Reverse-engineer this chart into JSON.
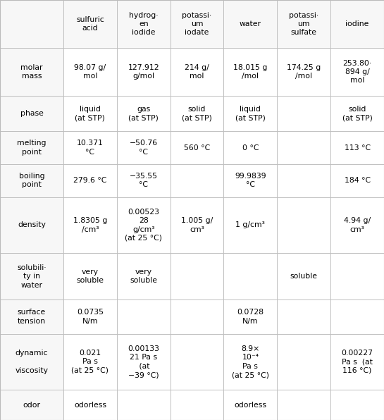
{
  "col_headers": [
    "",
    "sulfuric\nacid",
    "hydrog·\nen\niodide",
    "potassi·\num\niodate",
    "water",
    "potassi·\num\nsulfate",
    "iodine"
  ],
  "rows": [
    {
      "label": "molar\nmass",
      "values": [
        "98.07 g/\nmol",
        "127.912\ng/mol",
        "214 g/\nmol",
        "18.015 g\n/mol",
        "174.25 g\n/mol",
        "253.80·\n894 g/\nmol"
      ]
    },
    {
      "label": "phase",
      "values": [
        "liquid\n(at STP)",
        "gas\n(at STP)",
        "solid\n(at STP)",
        "liquid\n(at STP)",
        "",
        "solid\n(at STP)"
      ]
    },
    {
      "label": "melting\npoint",
      "values": [
        "10.371\n°C",
        "−50.76\n°C",
        "560 °C",
        "0 °C",
        "",
        "113 °C"
      ]
    },
    {
      "label": "boiling\npoint",
      "values": [
        "279.6 °C",
        "−35.55\n°C",
        "",
        "99.9839\n°C",
        "",
        "184 °C"
      ]
    },
    {
      "label": "density",
      "values": [
        "1.8305 g\n/cm³",
        "0.00523\n28\ng/cm³\n(at 25 °C)",
        "1.005 g/\ncm³",
        "1 g/cm³",
        "",
        "4.94 g/\ncm³"
      ]
    },
    {
      "label": "solubili·\nty in\nwater",
      "values": [
        "very\nsoluble",
        "very\nsoluble",
        "",
        "",
        "soluble",
        ""
      ]
    },
    {
      "label": "surface\ntension",
      "values": [
        "0.0735\nN/m",
        "",
        "",
        "0.0728\nN/m",
        "",
        ""
      ]
    },
    {
      "label": "dynamic\n\nviscosity",
      "values": [
        "0.021\nPa s\n(at 25 °C)",
        "0.00133\n21 Pa s\n (at\n−39 °C)",
        "",
        "8.9×\n10⁻⁴\nPa s\n(at 25 °C)",
        "",
        "0.00227\nPa s  (at\n116 °C)"
      ]
    },
    {
      "label": "odor",
      "values": [
        "odorless",
        "",
        "",
        "odorless",
        "",
        ""
      ]
    }
  ],
  "header_bg": "#f7f7f7",
  "row_label_bg": "#f7f7f7",
  "cell_bg": "#ffffff",
  "grid_color": "#bbbbbb",
  "text_color": "#000000",
  "font_size": 7.8,
  "small_font_size": 6.5,
  "fig_width": 5.45,
  "fig_height": 5.96,
  "dpi": 100
}
